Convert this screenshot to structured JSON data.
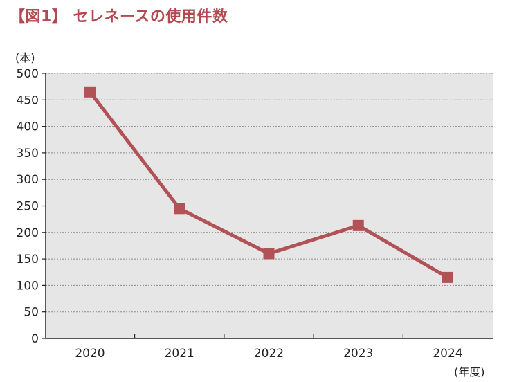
{
  "chart_data": {
    "type": "line",
    "title": "【図1】 セレネースの使用件数",
    "ylabel": "(本)",
    "xlabel": "(年度)",
    "categories": [
      "2020",
      "2021",
      "2022",
      "2023",
      "2024"
    ],
    "series": [
      {
        "values": [
          465,
          245,
          160,
          213,
          115
        ]
      }
    ],
    "ylim": [
      0,
      500
    ],
    "yticks": [
      0,
      50,
      100,
      150,
      200,
      250,
      300,
      350,
      400,
      450,
      500
    ],
    "grid": true,
    "colors": {
      "line": "#b05256",
      "plot_bg": "#e6e6e6",
      "title": "#b04a4f"
    }
  }
}
